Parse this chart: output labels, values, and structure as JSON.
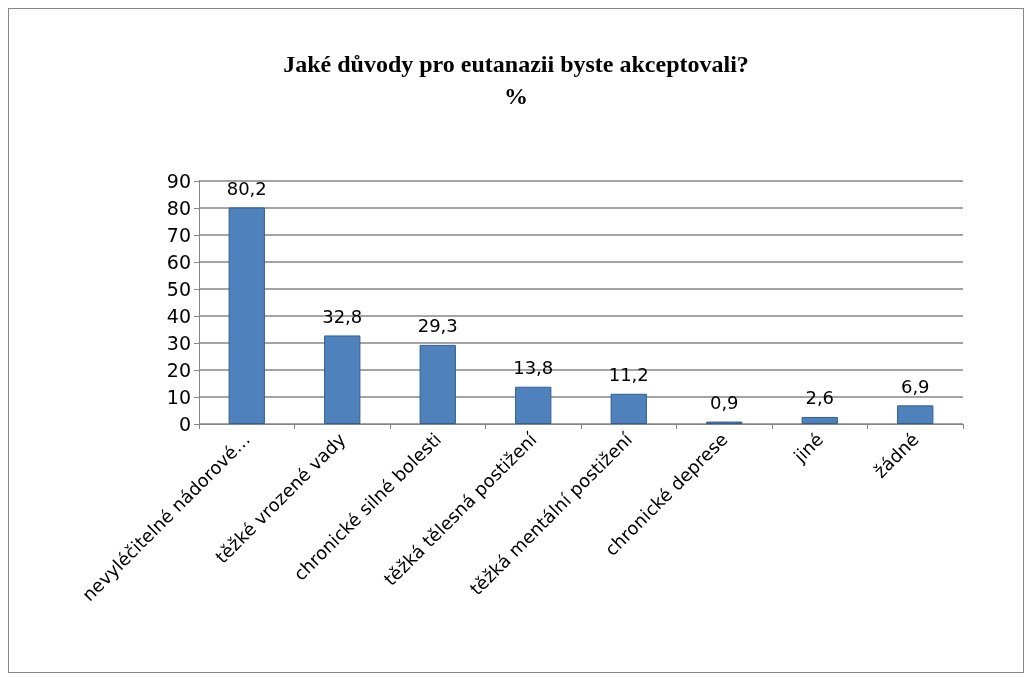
{
  "chart_data": {
    "type": "bar",
    "title": "Jaké důvody pro eutanazii byste akceptovali?",
    "subtitle": "%",
    "categories": [
      "nevyléčitelné nádorové…",
      "těžké vrozené vady",
      "chronické silné bolesti",
      "těžká tělesná postižení",
      "těžká mentální postižení",
      "chronické deprese",
      "jiné",
      "žádné"
    ],
    "values": [
      80.2,
      32.8,
      29.3,
      13.8,
      11.2,
      0.9,
      2.6,
      6.9
    ],
    "value_labels": [
      "80,2",
      "32,8",
      "29,3",
      "13,8",
      "11,2",
      "0,9",
      "2,6",
      "6,9"
    ],
    "color": "#4f81bd",
    "ylim": [
      0,
      90
    ],
    "yticks": [
      0,
      10,
      20,
      30,
      40,
      50,
      60,
      70,
      80,
      90
    ],
    "grid": "y"
  }
}
